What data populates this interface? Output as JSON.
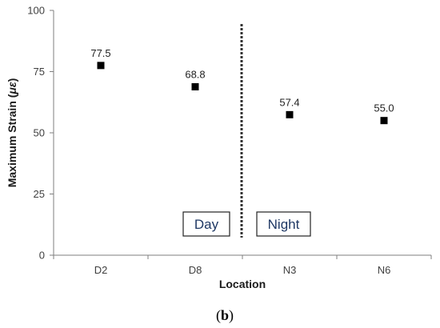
{
  "chart_data": {
    "type": "scatter",
    "categories": [
      "D2",
      "D8",
      "N3",
      "N6"
    ],
    "values": [
      77.5,
      68.8,
      57.4,
      55.0
    ],
    "value_labels": [
      "77.5",
      "68.8",
      "57.4",
      "55.0"
    ],
    "xlabel": "Location",
    "ylabel": "Maximum Strain (",
    "ylabel_symbol": "με",
    "ylabel_close": ")",
    "ylim": [
      0,
      100
    ],
    "yticks": [
      0,
      25,
      50,
      75,
      100
    ],
    "ytick_labels": [
      "0",
      "25",
      "50",
      "75",
      "100"
    ],
    "grid": false,
    "legend": "none",
    "marker": "square",
    "marker_color": "#000000",
    "divider_color": "#333333",
    "region_labels": [
      "Day",
      "Night"
    ]
  },
  "caption": {
    "open": "(",
    "letter": "b",
    "close": ")"
  }
}
